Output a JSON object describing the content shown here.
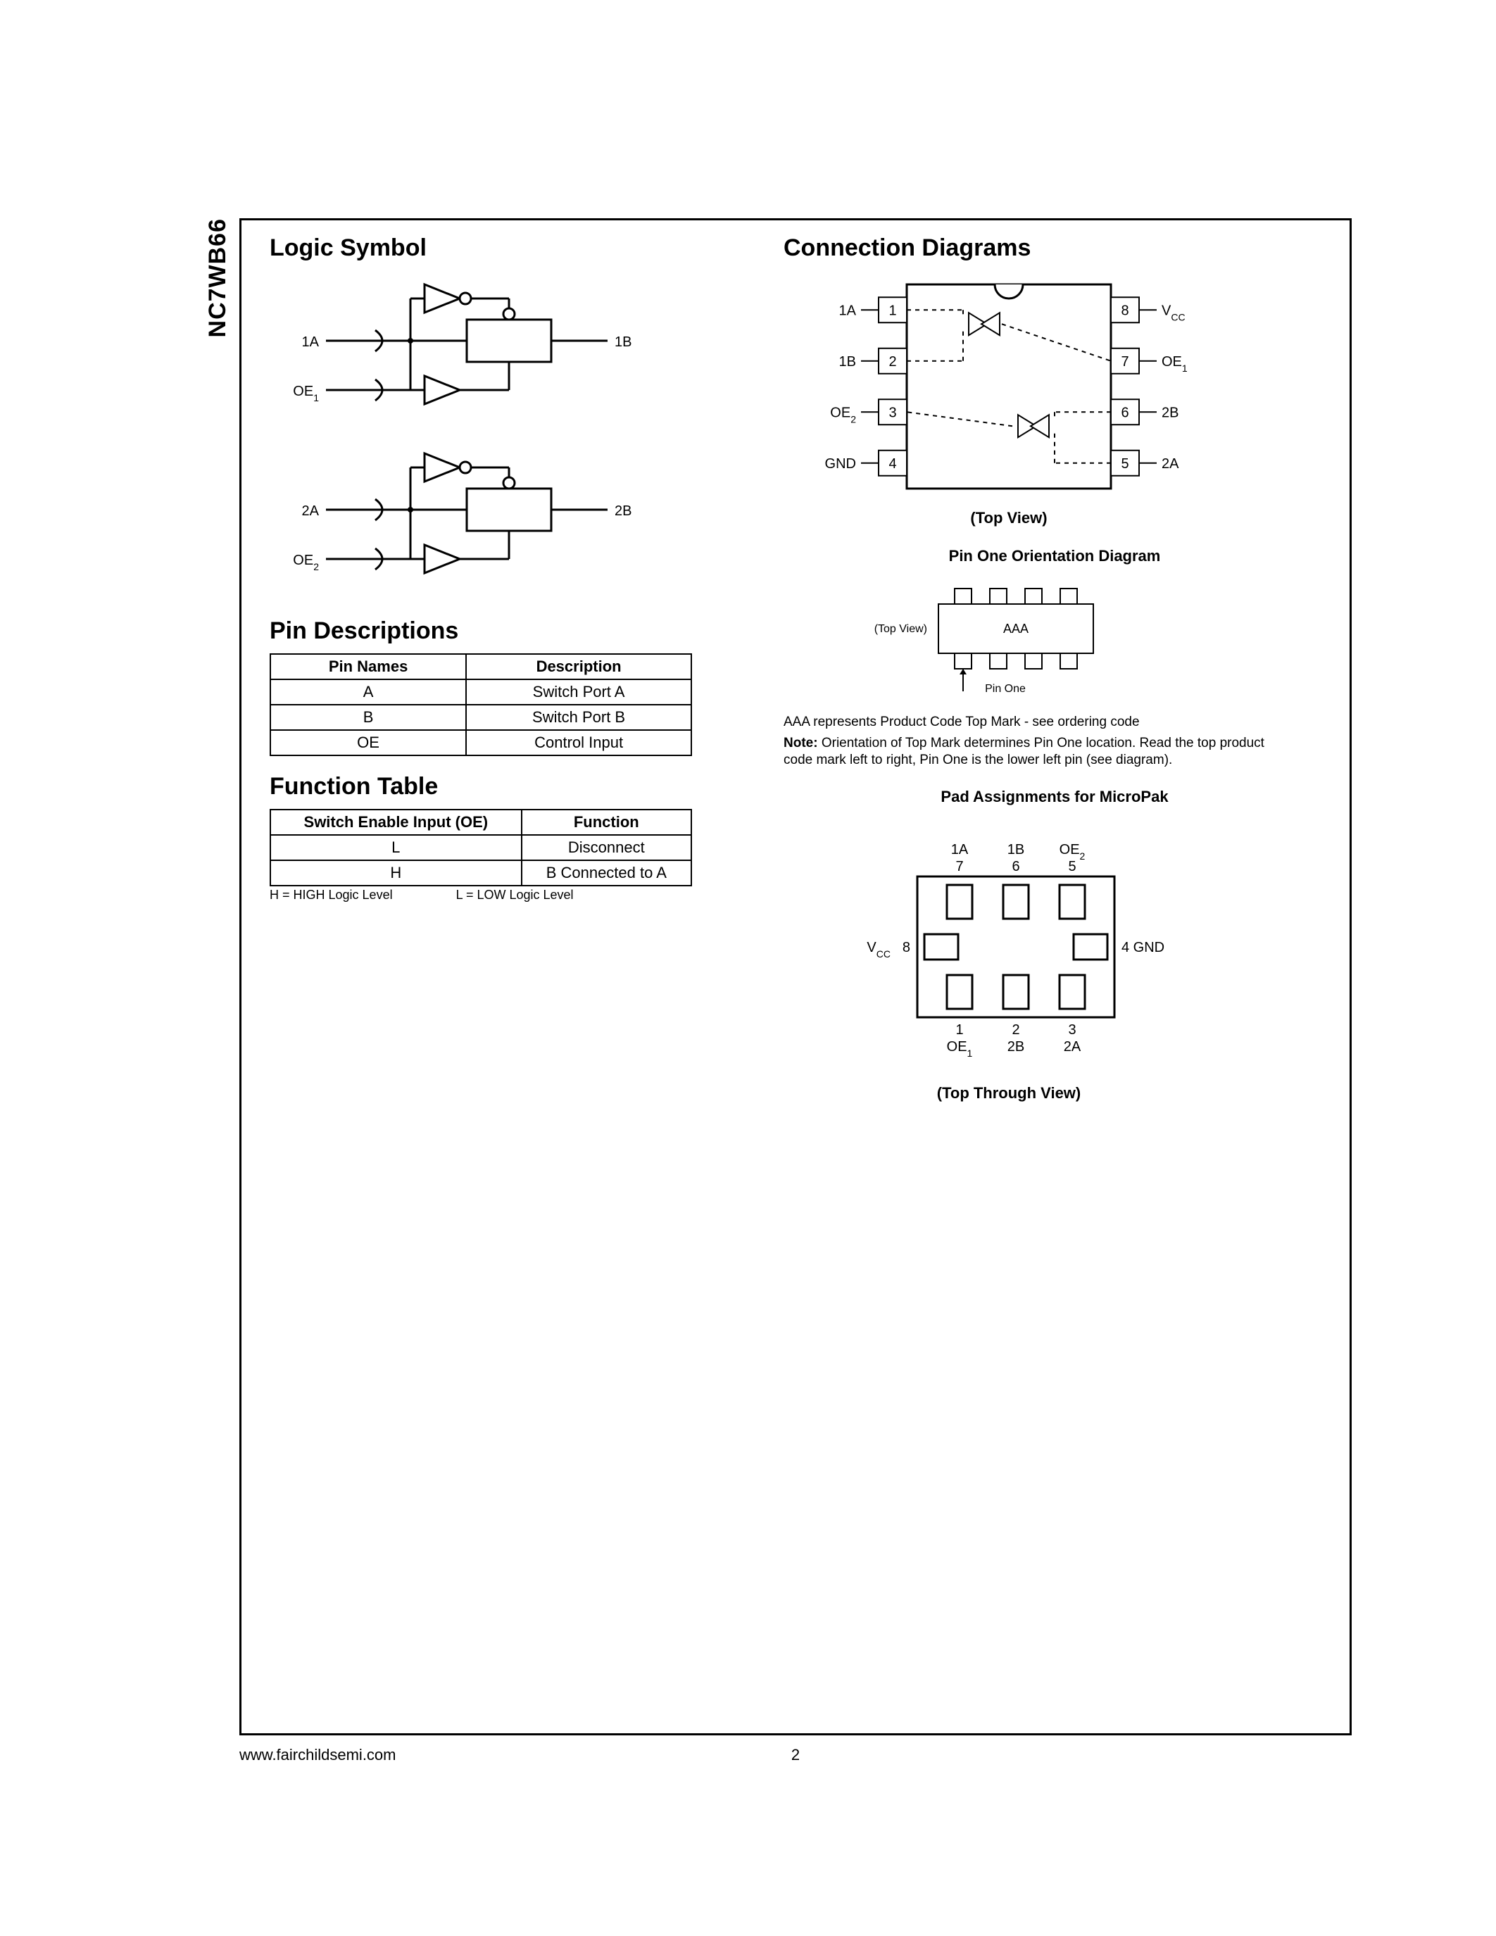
{
  "part_number": "NC7WB66",
  "page_number": "2",
  "footer_url": "www.fairchildsemi.com",
  "headings": {
    "logic_symbol": "Logic Symbol",
    "pin_descriptions": "Pin Descriptions",
    "function_table": "Function Table",
    "connection_diagrams": "Connection Diagrams",
    "pin_one_orientation": "Pin One Orientation Diagram",
    "pad_assignments": "Pad Assignments for MicroPak",
    "top_view": "(Top View)",
    "top_through_view": "(Top Through View)"
  },
  "pin_desc_table": {
    "headers": [
      "Pin Names",
      "Description"
    ],
    "rows": [
      [
        "A",
        "Switch Port A"
      ],
      [
        "B",
        "Switch Port B"
      ],
      [
        "OE",
        "Control Input"
      ]
    ]
  },
  "function_table": {
    "headers": [
      "Switch Enable Input (OE)",
      "Function"
    ],
    "rows": [
      [
        "L",
        "Disconnect"
      ],
      [
        "H",
        "B Connected to A"
      ]
    ],
    "legend_h": "H = HIGH Logic Level",
    "legend_l": "L = LOW Logic Level"
  },
  "logic_symbol": {
    "channels": [
      {
        "in_a": "1A",
        "out_b": "1B",
        "oe": "OE",
        "oe_sub": "1"
      },
      {
        "in_a": "2A",
        "out_b": "2B",
        "oe": "OE",
        "oe_sub": "2"
      }
    ]
  },
  "connection_diagram": {
    "left_pins": [
      {
        "n": "1",
        "lbl": "1A"
      },
      {
        "n": "2",
        "lbl": "1B"
      },
      {
        "n": "3",
        "lbl": "OE",
        "sub": "2"
      },
      {
        "n": "4",
        "lbl": "GND"
      }
    ],
    "right_pins": [
      {
        "n": "8",
        "lbl": "V",
        "sub": "CC"
      },
      {
        "n": "7",
        "lbl": "OE",
        "sub": "1"
      },
      {
        "n": "6",
        "lbl": "2B"
      },
      {
        "n": "5",
        "lbl": "2A"
      }
    ]
  },
  "pin_one_diagram": {
    "side_label": "(Top View)",
    "chip_text": "AAA",
    "pin_one_label": "Pin One",
    "note1": "AAA represents Product Code Top Mark - see ordering code",
    "note2_prefix": "Note:",
    "note2": " Orientation of Top Mark determines Pin One location. Read the top product code mark left to right, Pin One is the lower left pin (see diagram)."
  },
  "pad_diagram": {
    "top_pads": [
      {
        "n": "7",
        "lbl": "1A"
      },
      {
        "n": "6",
        "lbl": "1B"
      },
      {
        "n": "5",
        "lbl": "OE",
        "sub": "2"
      }
    ],
    "bottom_pads": [
      {
        "n": "1",
        "lbl": "OE",
        "sub": "1"
      },
      {
        "n": "2",
        "lbl": "2B"
      },
      {
        "n": "3",
        "lbl": "2A"
      }
    ],
    "left_pad": {
      "n": "8",
      "lbl": "V",
      "sub": "CC"
    },
    "right_pad": {
      "n": "4",
      "lbl": "GND"
    }
  },
  "style": {
    "stroke": "#000000",
    "stroke_width": 3,
    "stroke_thin": 2,
    "dash": "6,6",
    "font_small": 20,
    "font_med": 22,
    "heading_size": 34
  }
}
